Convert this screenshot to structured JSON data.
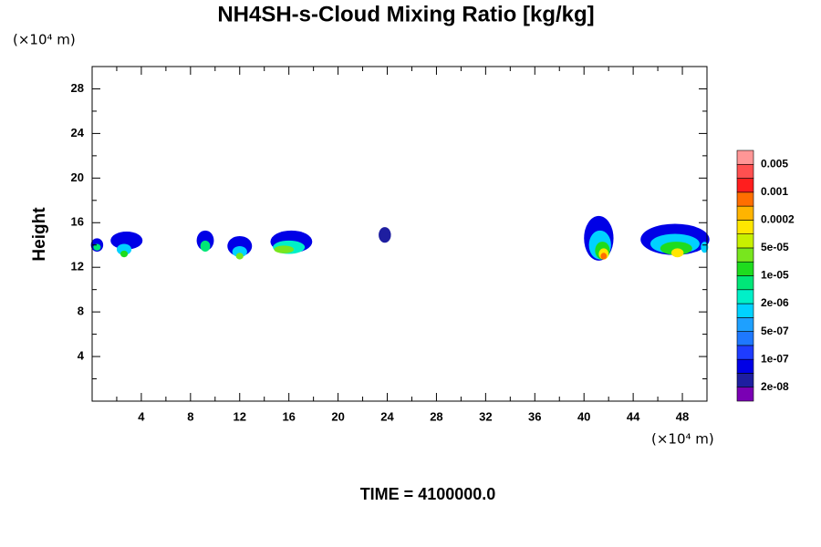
{
  "chart_data": {
    "type": "contour",
    "title": "NH4SH-s-Cloud Mixing Ratio [kg/kg]",
    "y_unit_label": "(×10⁴ m)",
    "x_unit_label": "(×10⁴ m)",
    "ylabel": "Height",
    "footer": "TIME = 4100000.0",
    "xlim": [
      0,
      50
    ],
    "ylim": [
      0,
      30
    ],
    "xticks": [
      4,
      8,
      12,
      16,
      20,
      24,
      28,
      32,
      36,
      40,
      44,
      48
    ],
    "yticks": [
      4,
      8,
      12,
      16,
      20,
      24,
      28
    ],
    "xminorticks": [
      2,
      6,
      10,
      14,
      18,
      22,
      26,
      30,
      34,
      38,
      42,
      46,
      50
    ],
    "yminorticks": [
      2,
      6,
      10,
      14,
      18,
      22,
      26,
      30
    ],
    "colorbar": {
      "colors": [
        "#7a00b4",
        "#1e1ea0",
        "#0000e6",
        "#1e3cff",
        "#1e78ff",
        "#1ea0ff",
        "#00d2ff",
        "#00f0c8",
        "#00e678",
        "#1edc1e",
        "#78e61e",
        "#c8f000",
        "#ffe600",
        "#ffb400",
        "#ff6e00",
        "#ff1e1e",
        "#ff5050",
        "#ff9696"
      ],
      "levels": [
        "2e-08",
        "1e-07",
        "5e-07",
        "2e-06",
        "1e-05",
        "5e-05",
        "0.0002",
        "0.001",
        "0.005"
      ]
    },
    "features": [
      {
        "x": 0.4,
        "y": 14.0,
        "rx": 0.5,
        "ry": 0.6,
        "color": "#0000e6"
      },
      {
        "x": 0.4,
        "y": 13.8,
        "rx": 0.3,
        "ry": 0.3,
        "color": "#00e678"
      },
      {
        "x": 2.8,
        "y": 14.4,
        "rx": 1.3,
        "ry": 0.8,
        "color": "#0000e6"
      },
      {
        "x": 2.6,
        "y": 13.6,
        "rx": 0.6,
        "ry": 0.5,
        "color": "#00d2ff"
      },
      {
        "x": 2.6,
        "y": 13.2,
        "rx": 0.3,
        "ry": 0.3,
        "color": "#1edc1e"
      },
      {
        "x": 9.2,
        "y": 14.4,
        "rx": 0.7,
        "ry": 0.9,
        "color": "#0000e6"
      },
      {
        "x": 9.2,
        "y": 13.9,
        "rx": 0.4,
        "ry": 0.5,
        "color": "#00e678"
      },
      {
        "x": 12.0,
        "y": 13.9,
        "rx": 1.0,
        "ry": 0.9,
        "color": "#0000e6"
      },
      {
        "x": 12.0,
        "y": 13.4,
        "rx": 0.6,
        "ry": 0.5,
        "color": "#00d2ff"
      },
      {
        "x": 12.0,
        "y": 13.0,
        "rx": 0.3,
        "ry": 0.3,
        "color": "#78e61e"
      },
      {
        "x": 16.2,
        "y": 14.3,
        "rx": 1.7,
        "ry": 1.0,
        "color": "#0000e6"
      },
      {
        "x": 16.0,
        "y": 13.8,
        "rx": 1.3,
        "ry": 0.6,
        "color": "#00f0c8"
      },
      {
        "x": 15.6,
        "y": 13.6,
        "rx": 0.8,
        "ry": 0.35,
        "color": "#78e61e"
      },
      {
        "x": 23.8,
        "y": 14.9,
        "rx": 0.5,
        "ry": 0.7,
        "color": "#1e1ea0"
      },
      {
        "x": 41.2,
        "y": 14.6,
        "rx": 1.2,
        "ry": 2.0,
        "color": "#0000e6"
      },
      {
        "x": 41.3,
        "y": 14.0,
        "rx": 0.9,
        "ry": 1.3,
        "color": "#00d2ff"
      },
      {
        "x": 41.5,
        "y": 13.5,
        "rx": 0.6,
        "ry": 0.8,
        "color": "#1edc1e"
      },
      {
        "x": 41.6,
        "y": 13.2,
        "rx": 0.4,
        "ry": 0.5,
        "color": "#ffe600"
      },
      {
        "x": 41.6,
        "y": 13.0,
        "rx": 0.25,
        "ry": 0.3,
        "color": "#ff6e00"
      },
      {
        "x": 47.4,
        "y": 14.5,
        "rx": 2.8,
        "ry": 1.4,
        "color": "#0000e6"
      },
      {
        "x": 47.4,
        "y": 14.1,
        "rx": 2.0,
        "ry": 0.9,
        "color": "#00d2ff"
      },
      {
        "x": 47.5,
        "y": 13.7,
        "rx": 1.3,
        "ry": 0.6,
        "color": "#1edc1e"
      },
      {
        "x": 47.6,
        "y": 13.3,
        "rx": 0.5,
        "ry": 0.4,
        "color": "#ffe600"
      },
      {
        "x": 49.8,
        "y": 13.8,
        "rx": 0.3,
        "ry": 0.5,
        "color": "#00d2ff"
      }
    ]
  }
}
